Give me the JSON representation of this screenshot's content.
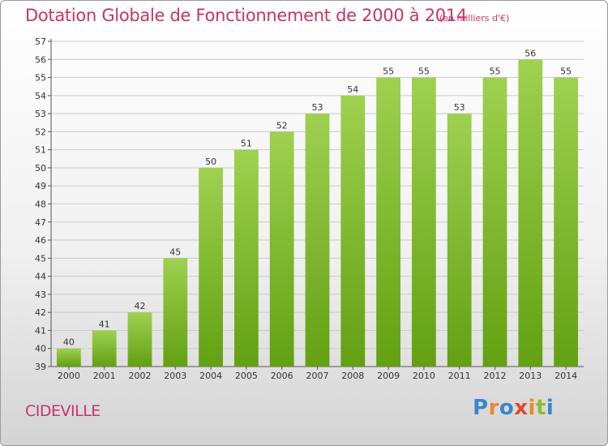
{
  "title": "Dotation Globale de Fonctionnement de 2000 à 2014",
  "subtitle": "(en milliers d'€)",
  "commune": "CIDEVILLE",
  "logo": {
    "letters": [
      "P",
      "r",
      "o",
      "x",
      "i",
      "t",
      "i"
    ]
  },
  "colors": {
    "accent_text": "#c8336b",
    "bar_top": "#9ed150",
    "bar_bottom": "#63a012",
    "grid": "#cccccc"
  },
  "chart_data": {
    "type": "bar",
    "categories": [
      "2000",
      "2001",
      "2002",
      "2003",
      "2004",
      "2005",
      "2006",
      "2007",
      "2008",
      "2009",
      "2010",
      "2011",
      "2012",
      "2013",
      "2014"
    ],
    "values": [
      40,
      41,
      42,
      45,
      50,
      51,
      52,
      53,
      54,
      55,
      55,
      53,
      55,
      56,
      55
    ],
    "ylim": [
      39,
      57
    ],
    "yticks": [
      39,
      40,
      41,
      42,
      43,
      44,
      45,
      46,
      47,
      48,
      49,
      50,
      51,
      52,
      53,
      54,
      55,
      56,
      57
    ],
    "grid": true,
    "data_labels": true
  }
}
